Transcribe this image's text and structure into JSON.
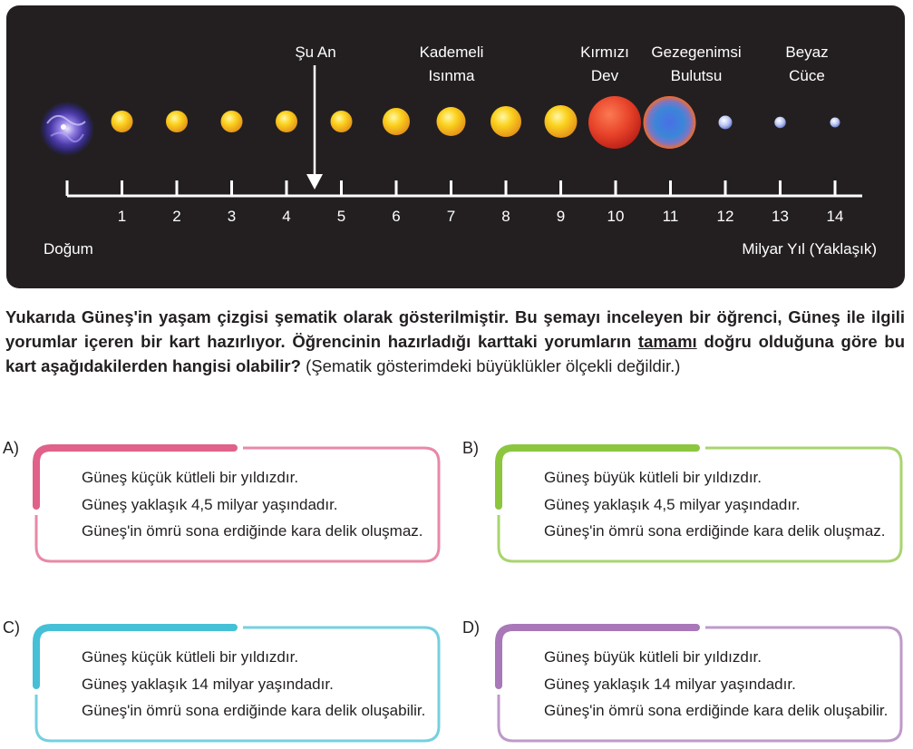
{
  "diagram": {
    "annotations": {
      "now": "Şu An",
      "warming": [
        "Kademeli",
        "Isınma"
      ],
      "red_giant": [
        "Kırmızı",
        "Dev"
      ],
      "nebula": [
        "Gezegenimsi",
        "Bulutsu"
      ],
      "white_dwarf": [
        "Beyaz",
        "Cüce"
      ]
    },
    "axis": {
      "tick_labels": [
        "1",
        "2",
        "3",
        "4",
        "5",
        "6",
        "7",
        "8",
        "9",
        "10",
        "11",
        "12",
        "13",
        "14"
      ],
      "start_label": "Doğum",
      "unit_label": "Milyar Yıl (Yaklaşık)",
      "current_position": 4.5
    },
    "stages": [
      {
        "kind": "nebula",
        "x": 0,
        "size": 1
      },
      {
        "kind": "star",
        "x": 1,
        "size": 0.4
      },
      {
        "kind": "star",
        "x": 2,
        "size": 0.4
      },
      {
        "kind": "star",
        "x": 3,
        "size": 0.4
      },
      {
        "kind": "star",
        "x": 4,
        "size": 0.4
      },
      {
        "kind": "star",
        "x": 5,
        "size": 0.4
      },
      {
        "kind": "star",
        "x": 6,
        "size": 0.52
      },
      {
        "kind": "star",
        "x": 7,
        "size": 0.56
      },
      {
        "kind": "star",
        "x": 8,
        "size": 0.6
      },
      {
        "kind": "star",
        "x": 9,
        "size": 0.64
      },
      {
        "kind": "red_giant",
        "x": 10,
        "size": 1
      },
      {
        "kind": "planetary_nebula",
        "x": 11,
        "size": 1
      },
      {
        "kind": "white_dwarf",
        "x": 12,
        "size": 0.3
      },
      {
        "kind": "white_dwarf",
        "x": 13,
        "size": 0.25
      },
      {
        "kind": "white_dwarf",
        "x": 14,
        "size": 0.22
      }
    ]
  },
  "question": {
    "bold_text": "Yukarıda Güneş'in yaşam çizgisi şematik olarak gösterilmiştir. Bu şemayı inceleyen bir öğrenci, Güneş ile ilgili yorumlar içeren bir kart hazırlıyor. Öğrencinin hazırladığı karttaki yorumların",
    "underlined_word": "tamamı",
    "bold_text_2": "doğru olduğuna göre bu kart aşağıdakilerden hangisi olabilir?",
    "note": "(Şematik gösterimdeki büyüklükler ölçekli değildir.)"
  },
  "options": [
    {
      "letter": "A)",
      "color": "#e0618a",
      "lines": [
        "Güneş küçük kütleli bir yıldızdır.",
        "Güneş yaklaşık 4,5 milyar yaşındadır.",
        "Güneş'in ömrü sona erdiğinde kara delik oluşmaz."
      ]
    },
    {
      "letter": "B)",
      "color": "#8cc63f",
      "lines": [
        "Güneş büyük kütleli bir yıldızdır.",
        "Güneş yaklaşık 4,5 milyar yaşındadır.",
        "Güneş'in ömrü sona erdiğinde kara delik oluşmaz."
      ]
    },
    {
      "letter": "C)",
      "color": "#45c0d6",
      "lines": [
        "Güneş küçük kütleli bir yıldızdır.",
        "Güneş yaklaşık 14 milyar yaşındadır.",
        "Güneş'in ömrü sona erdiğinde kara delik oluşabilir."
      ]
    },
    {
      "letter": "D)",
      "color": "#a878b8",
      "lines": [
        "Güneş büyük kütleli bir yıldızdır.",
        "Güneş yaklaşık 14 milyar yaşındadır.",
        "Güneş'in ömrü sona erdiğinde kara delik oluşabilir."
      ]
    }
  ]
}
